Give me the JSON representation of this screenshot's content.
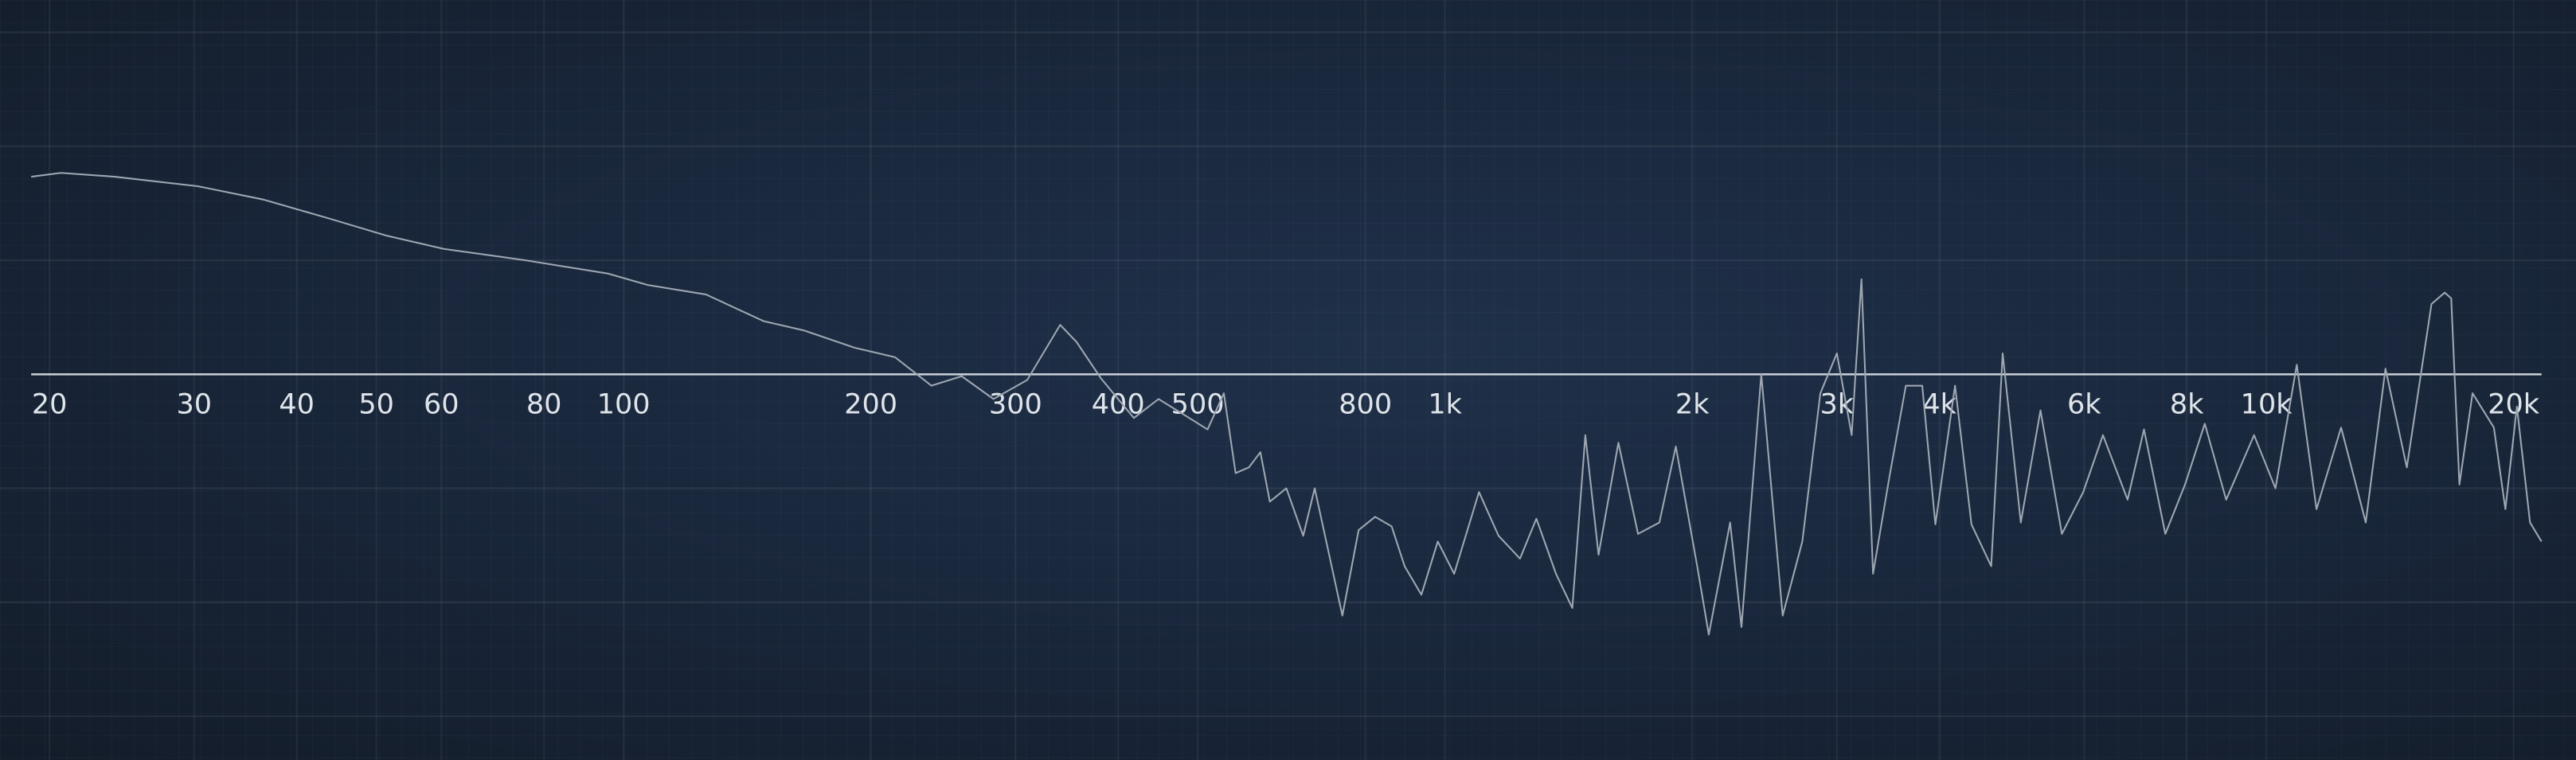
{
  "chart_data": {
    "type": "line",
    "log_x": true,
    "grid": true,
    "color": "#9ea7b2",
    "xlim": [
      19,
      21626
    ],
    "ylim": [
      -20.3,
      19.7
    ],
    "xticks": [
      20,
      30,
      40,
      50,
      60,
      80,
      100,
      200,
      300,
      400,
      500,
      800,
      {
        "value": 1000,
        "label": "1k"
      },
      {
        "value": 2000,
        "label": "2k"
      },
      {
        "value": 3000,
        "label": "3k"
      },
      {
        "value": 4000,
        "label": "4k"
      },
      {
        "value": 6000,
        "label": "6k"
      },
      {
        "value": 8000,
        "label": "8k"
      },
      {
        "value": 10000,
        "label": "10k"
      },
      {
        "value": 20000,
        "label": "20k"
      }
    ],
    "yticks": [
      -18,
      -12,
      -6,
      0,
      6,
      12,
      18
    ],
    "x": [
      19,
      20.65,
      24,
      30.3,
      36.4,
      43.8,
      51.4,
      60.4,
      76,
      95.7,
      107,
      126,
      135,
      148,
      166,
      191,
      214,
      237,
      258,
      282,
      310,
      340,
      356,
      381,
      418,
      448,
      480,
      514,
      538,
      556,
      577,
      596,
      612,
      641,
      672,
      694,
      750,
      785,
      822,
      861,
      893,
      936,
      980,
      1026,
      1100,
      1162,
      1234,
      1292,
      1365,
      1429,
      1482,
      1538,
      1626,
      1718,
      1824,
      1910,
      2028,
      2095,
      2224,
      2296,
      2427,
      2577,
      2723,
      2864,
      3000,
      3127,
      3214,
      3320,
      3476,
      3640,
      3811,
      3954,
      4178,
      4375,
      4624,
      4775,
      5024,
      5309,
      5637,
      5984,
      6325,
      6777,
      7096,
      7534,
      7962,
      8414,
      8934,
      9661,
      10258,
      10890,
      11509,
      12331,
      13213,
      13964,
      14825,
      15887,
      16487,
      16790,
      17180,
      17825,
      18923,
      19544,
      20184,
      20941,
      21626
    ],
    "values": [
      10.4,
      10.6,
      10.4,
      9.9,
      9.2,
      8.2,
      7.3,
      6.6,
      6.0,
      5.3,
      4.7,
      4.2,
      3.6,
      2.8,
      2.3,
      1.4,
      0.9,
      -0.6,
      -0.1,
      -1.3,
      -0.3,
      2.6,
      1.7,
      -0.2,
      -2.3,
      -1.3,
      -2.1,
      -2.9,
      -1.0,
      -5.2,
      -4.9,
      -4.1,
      -6.7,
      -6.0,
      -8.5,
      -6.0,
      -12.7,
      -8.2,
      -7.5,
      -8.0,
      -10.1,
      -11.6,
      -8.8,
      -10.5,
      -6.2,
      -8.5,
      -9.7,
      -7.6,
      -10.5,
      -12.3,
      -3.2,
      -9.5,
      -3.6,
      -8.4,
      -7.8,
      -3.8,
      -10.1,
      -13.7,
      -7.8,
      -13.3,
      0,
      -12.7,
      -8.8,
      -1.0,
      1.1,
      -3.2,
      5.0,
      -10.5,
      -5.4,
      -0.6,
      -0.6,
      -7.9,
      -0.6,
      -7.9,
      -10.1,
      1.1,
      -7.8,
      -1.9,
      -8.4,
      -6.2,
      -3.2,
      -6.6,
      -2.9,
      -8.4,
      -5.8,
      -2.6,
      -6.6,
      -3.2,
      -6.0,
      0.5,
      -7.1,
      -2.8,
      -7.8,
      0.3,
      -4.9,
      3.7,
      4.3,
      4.0,
      -5.8,
      -1.0,
      -2.8,
      -7.1,
      -1.7,
      -7.8,
      -8.8
    ]
  }
}
